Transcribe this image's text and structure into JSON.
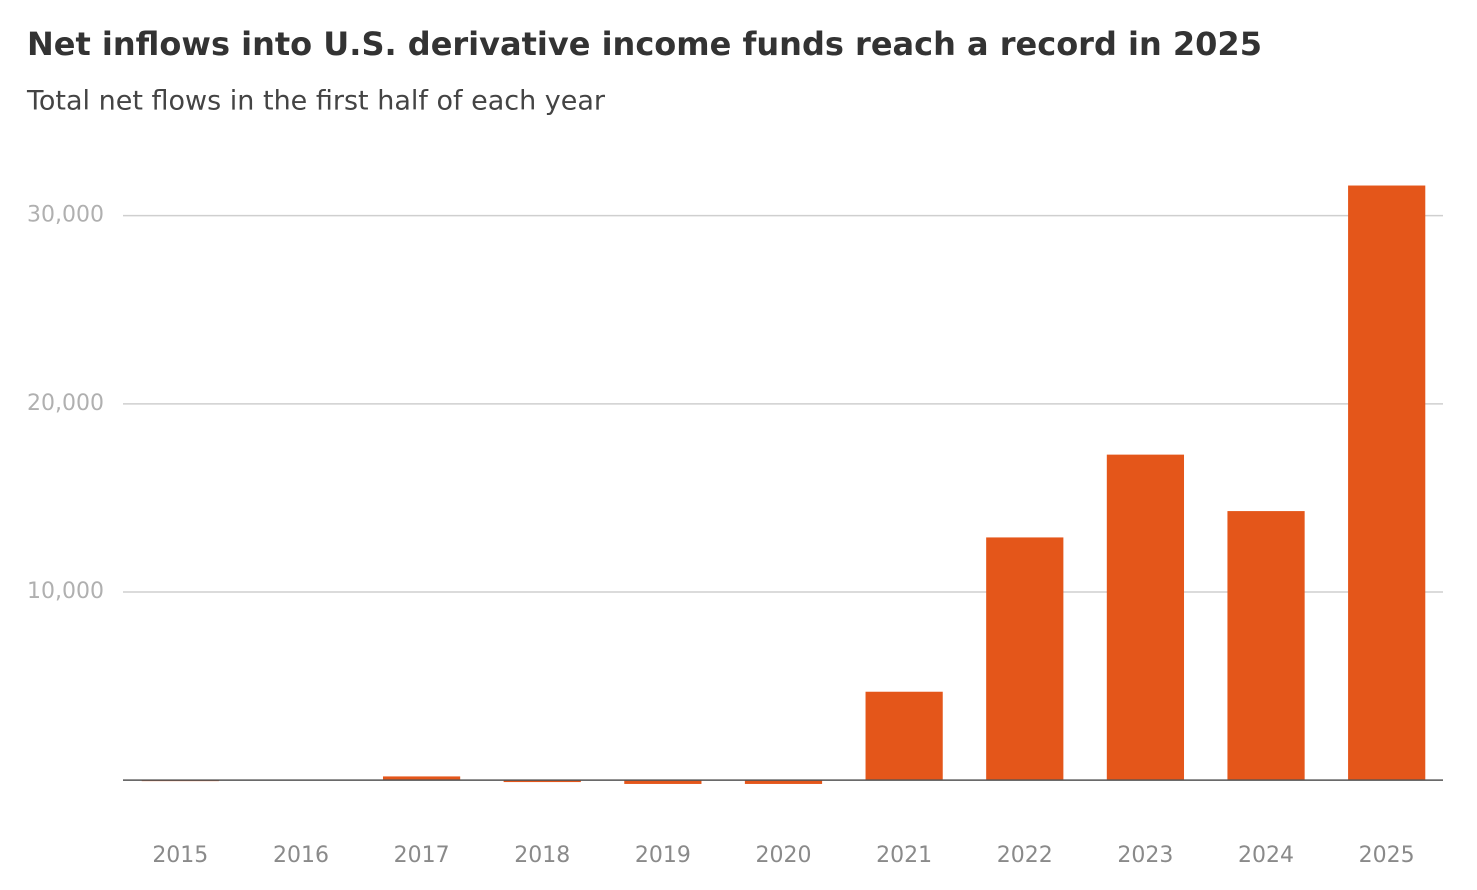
{
  "chart_data": {
    "type": "bar",
    "title": "Net inflows into U.S. derivative income funds reach a record in 2025",
    "subtitle": "Total net flows in the first half of each year",
    "categories": [
      "2015",
      "2016",
      "2017",
      "2018",
      "2019",
      "2020",
      "2021",
      "2022",
      "2023",
      "2024",
      "2025"
    ],
    "values": [
      -50,
      0,
      200,
      -100,
      -200,
      -200,
      4700,
      12900,
      17300,
      14300,
      31600
    ],
    "color": "#e4561a",
    "ylim": [
      -1000,
      32000
    ],
    "yticks": [
      {
        "value": 10000,
        "label": "10,000"
      },
      {
        "value": 20000,
        "label": "20,000"
      },
      {
        "value": 30000,
        "label": "30,000"
      }
    ],
    "grid": true
  }
}
